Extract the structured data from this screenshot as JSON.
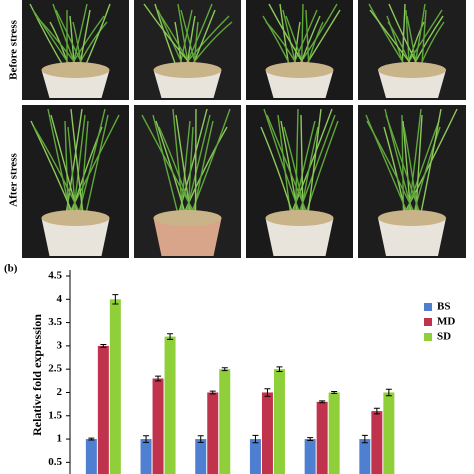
{
  "chart_data": {
    "type": "bar",
    "panel_label": "(b)",
    "photo_labels": [
      "Before stress",
      "After stress"
    ],
    "y_label": "Relative fold expression",
    "categories": [
      null,
      null,
      null,
      null,
      null,
      null
    ],
    "series": [
      {
        "name": "BS",
        "color": "#4f7fd0",
        "values": [
          1,
          1,
          1,
          1,
          1,
          1
        ],
        "errors": [
          0.02,
          0.07,
          0.07,
          0.08,
          0.03,
          0.08
        ]
      },
      {
        "name": "MD",
        "color": "#c0334d",
        "values": [
          3.0,
          2.3,
          2.0,
          2.0,
          1.8,
          1.6
        ],
        "errors": [
          0.03,
          0.05,
          0.03,
          0.08,
          0.02,
          0.06
        ]
      },
      {
        "name": "SD",
        "color": "#8fd03a",
        "values": [
          4.0,
          3.2,
          2.5,
          2.5,
          2.0,
          2.0
        ],
        "errors": [
          0.1,
          0.06,
          0.03,
          0.05,
          0.02,
          0.07
        ]
      }
    ],
    "ylim": [
      0.25,
      4.5
    ],
    "yticks": [
      0.5,
      1,
      1.5,
      2,
      2.5,
      3,
      3.5,
      4,
      4.5
    ]
  }
}
